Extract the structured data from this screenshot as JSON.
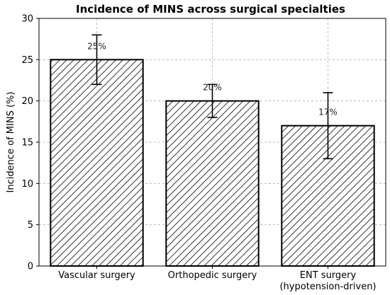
{
  "chart_data": {
    "type": "bar",
    "title": "Incidence of MINS across surgical specialties",
    "xlabel": "",
    "ylabel": "Incidence of MINS (%)",
    "ylim": [
      0,
      30
    ],
    "yticks": [
      0,
      5,
      10,
      15,
      20,
      25,
      30
    ],
    "grid": true,
    "categories": [
      [
        "Vascular surgery"
      ],
      [
        "Orthopedic surgery"
      ],
      [
        "ENT surgery",
        "(hypotension-driven)"
      ]
    ],
    "values": [
      25,
      20,
      17
    ],
    "error_low": [
      22,
      18,
      13
    ],
    "error_high": [
      28,
      22,
      21
    ],
    "data_labels": [
      "25%",
      "20%",
      "17%"
    ],
    "bar_fill": "hatched",
    "colors": {
      "edge": "#000000",
      "hatch": "#000000",
      "background": "#ffffff"
    }
  }
}
